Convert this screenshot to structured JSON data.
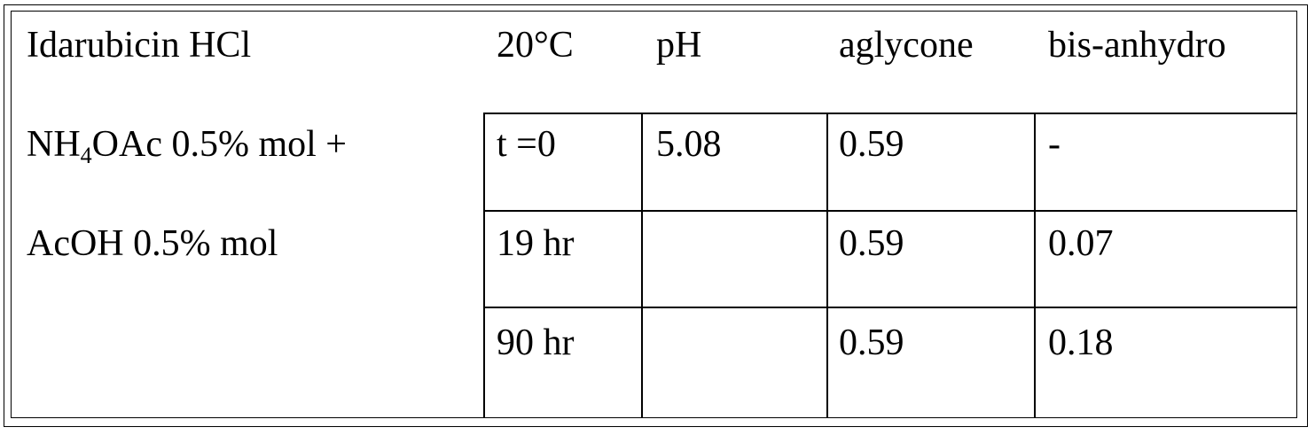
{
  "header": {
    "compound": "Idarubicin HCl",
    "temperature": "20°C",
    "col_ph": "pH",
    "col_aglycone": "aglycone",
    "col_bis": "bis-anhydro"
  },
  "buffer": {
    "line1_pre": "NH",
    "line1_sub": "4",
    "line1_post": "OAc 0.5% mol +",
    "line2": "AcOH 0.5% mol"
  },
  "rows": [
    {
      "time": "t =0",
      "ph": "5.08",
      "aglycone": "0.59",
      "bis": "-"
    },
    {
      "time": "19 hr",
      "ph": "",
      "aglycone": "0.59",
      "bis": "0.07"
    },
    {
      "time": "90 hr",
      "ph": "",
      "aglycone": "0.59",
      "bis": "0.18"
    }
  ]
}
